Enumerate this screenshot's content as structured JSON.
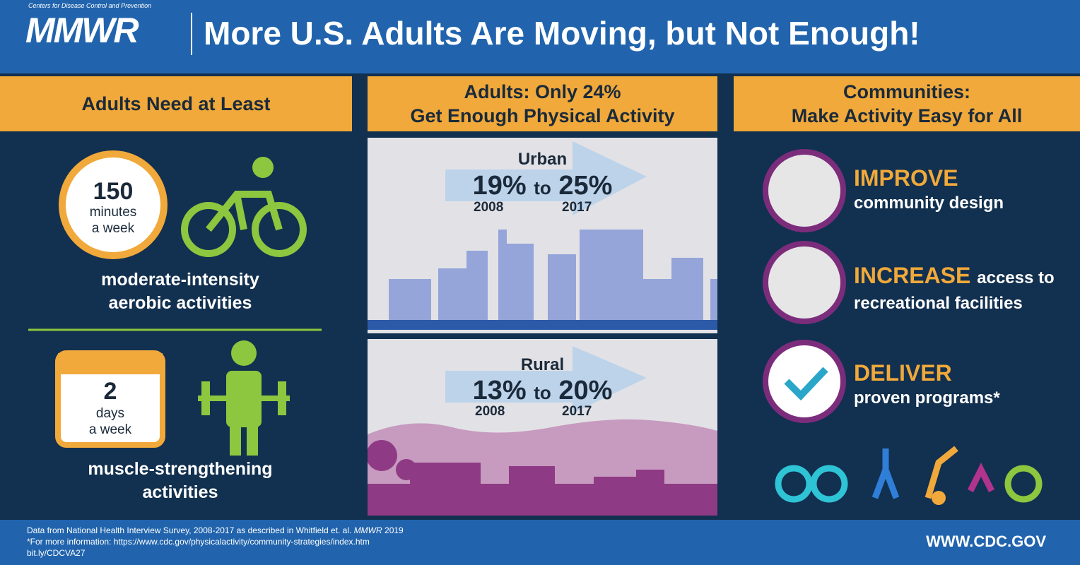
{
  "header": {
    "org": "Centers for Disease Control and Prevention",
    "logo": "MMWR",
    "title": "More U.S. Adults Are Moving, but Not Enough!"
  },
  "left": {
    "heading": "Adults Need at Least",
    "aerobic": {
      "number": "150",
      "unit": "minutes",
      "period": "a week",
      "caption": [
        "moderate-intensity",
        "aerobic activities"
      ]
    },
    "strength": {
      "number": "2",
      "unit": "days",
      "period": "a week",
      "caption": [
        "muscle-strengthening",
        "activities"
      ]
    }
  },
  "middle": {
    "heading": [
      "Adults: Only 24%",
      "Get Enough Physical Activity"
    ],
    "urban": {
      "label": "Urban",
      "from": "19%",
      "word": "to",
      "to": "25%",
      "from_year": "2008",
      "to_year": "2017"
    },
    "rural": {
      "label": "Rural",
      "from": "13%",
      "word": "to",
      "to": "20%",
      "from_year": "2008",
      "to_year": "2017"
    }
  },
  "right": {
    "heading": [
      "Communities:",
      "Make Activity Easy for All"
    ],
    "items": [
      {
        "action": "IMPROVE",
        "detail": "community design"
      },
      {
        "action": "INCREASE",
        "inline": "access to",
        "detail": "recreational facilities"
      },
      {
        "action": "DELIVER",
        "detail": "proven programs*"
      }
    ]
  },
  "footer": {
    "source": "Data from National Health Interview Survey, 2008-2017 as described in Whitfield et. al.",
    "journal": "MMWR",
    "year": "2019",
    "note": "*For more information: https://www.cdc.gov/physicalactivity/community-strategies/index.htm",
    "link": "bit.ly/CDCVA27",
    "url": "WWW.CDC.GOV"
  }
}
